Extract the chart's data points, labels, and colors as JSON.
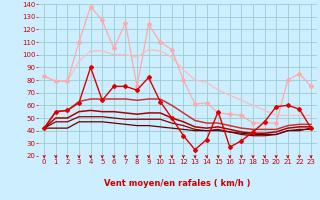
{
  "xlabel": "Vent moyen/en rafales ( km/h )",
  "xlim": [
    -0.5,
    23.5
  ],
  "ylim": [
    20,
    140
  ],
  "yticks": [
    20,
    30,
    40,
    50,
    60,
    70,
    80,
    90,
    100,
    110,
    120,
    130,
    140
  ],
  "xticks": [
    0,
    1,
    2,
    3,
    4,
    5,
    6,
    7,
    8,
    9,
    10,
    11,
    12,
    13,
    14,
    15,
    16,
    17,
    18,
    19,
    20,
    21,
    22,
    23
  ],
  "bg_color": "#cceeff",
  "grid_color": "#99cccc",
  "series": [
    {
      "values": [
        83,
        79,
        79,
        110,
        138,
        127,
        105,
        125,
        75,
        124,
        110,
        104,
        80,
        61,
        62,
        54,
        53,
        52,
        46,
        46,
        46,
        80,
        85,
        75
      ],
      "color": "#ffaaaa",
      "marker": "D",
      "linewidth": 0.9,
      "markersize": 2.0,
      "zorder": 3
    },
    {
      "values": [
        83,
        79,
        79,
        95,
        103,
        103,
        100,
        100,
        98,
        104,
        103,
        98,
        88,
        80,
        78,
        72,
        68,
        64,
        60,
        56,
        52,
        52,
        52,
        52
      ],
      "color": "#ffbbbb",
      "marker": null,
      "linewidth": 0.9,
      "markersize": 0,
      "zorder": 2
    },
    {
      "values": [
        42,
        55,
        56,
        62,
        90,
        64,
        75,
        75,
        72,
        82,
        63,
        50,
        36,
        25,
        33,
        55,
        27,
        32,
        39,
        47,
        59,
        60,
        57,
        42
      ],
      "color": "#dd0000",
      "marker": "D",
      "linewidth": 1.0,
      "markersize": 2.0,
      "zorder": 5
    },
    {
      "values": [
        42,
        55,
        56,
        63,
        65,
        65,
        65,
        65,
        64,
        65,
        65,
        60,
        54,
        48,
        46,
        46,
        44,
        42,
        41,
        41,
        41,
        44,
        45,
        45
      ],
      "color": "#cc3333",
      "marker": null,
      "linewidth": 1.1,
      "markersize": 0,
      "zorder": 4
    },
    {
      "values": [
        42,
        50,
        50,
        55,
        56,
        55,
        55,
        54,
        53,
        54,
        54,
        50,
        47,
        43,
        42,
        43,
        41,
        39,
        38,
        38,
        39,
        42,
        43,
        43
      ],
      "color": "#aa0000",
      "marker": null,
      "linewidth": 1.1,
      "markersize": 0,
      "zorder": 4
    },
    {
      "values": [
        42,
        47,
        47,
        51,
        51,
        51,
        50,
        49,
        49,
        49,
        49,
        46,
        44,
        41,
        40,
        41,
        39,
        37,
        36,
        36,
        37,
        40,
        41,
        41
      ],
      "color": "#880000",
      "marker": null,
      "linewidth": 0.9,
      "markersize": 0,
      "zorder": 4
    },
    {
      "values": [
        42,
        42,
        42,
        47,
        47,
        47,
        46,
        45,
        44,
        44,
        43,
        42,
        41,
        40,
        40,
        40,
        39,
        38,
        37,
        37,
        37,
        40,
        40,
        42
      ],
      "color": "#660000",
      "marker": null,
      "linewidth": 0.9,
      "markersize": 0,
      "zorder": 4
    }
  ],
  "arrow_color": "#cc0000",
  "tick_label_color": "#cc0000",
  "axis_label_color": "#cc0000",
  "tick_fontsize": 5,
  "xlabel_fontsize": 6,
  "xlabel_fontweight": "bold"
}
